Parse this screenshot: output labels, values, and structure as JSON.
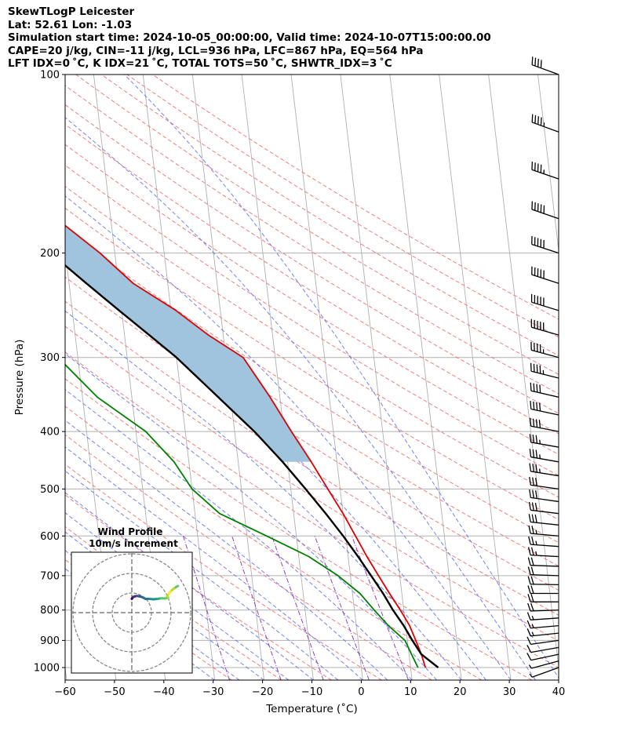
{
  "header": {
    "line1": "SkewTLogP Leicester",
    "line2": "Lat: 52.61   Lon: -1.03",
    "line3": "Simulation start time: 2024-10-05_00:00:00, Valid time: 2024-10-07T15:00:00.00",
    "line4": "CAPE=20 j/kg, CIN=-11 j/kg, LCL=936 hPa, LFC=867 hPa, EQ=564 hPa",
    "line5": "LFT IDX=0 ˚C, K IDX=21 ˚C, TOTAL TOTS=50 ˚C, SHWTR_IDX=3 ˚C"
  },
  "chart_data": {
    "type": "line",
    "subtype": "skew-T log-P diagram",
    "xlabel": "Temperature (˚C)",
    "ylabel": "Pressure (hPa)",
    "xlim": [
      -60,
      40
    ],
    "ylim": [
      1050,
      100
    ],
    "yscale": "log",
    "x_ticks": [
      "−60",
      "−50",
      "−40",
      "−30",
      "−20",
      "−10",
      "0",
      "10",
      "20",
      "30",
      "40"
    ],
    "y_ticks": [
      "100",
      "200",
      "300",
      "400",
      "500",
      "600",
      "700",
      "800",
      "900",
      "1000"
    ],
    "grid": true,
    "series": [
      {
        "role": "temperature",
        "color": "#e00000",
        "points": [
          [
            13,
            1000
          ],
          [
            12.5,
            950
          ],
          [
            11.7,
            900
          ],
          [
            10.8,
            850
          ],
          [
            9.3,
            800
          ],
          [
            7.5,
            750
          ],
          [
            5.7,
            700
          ],
          [
            3.8,
            650
          ],
          [
            2,
            600
          ],
          [
            0,
            550
          ],
          [
            -2.5,
            500
          ],
          [
            -5.2,
            450
          ],
          [
            -8.5,
            400
          ],
          [
            -12,
            350
          ],
          [
            -16.5,
            300
          ],
          [
            -23,
            275
          ],
          [
            -29,
            250
          ],
          [
            -37,
            225
          ],
          [
            -43,
            200
          ],
          [
            -51,
            175
          ],
          [
            -55,
            160
          ],
          [
            -60,
            145
          ],
          [
            -63,
            130
          ],
          [
            -64,
            120
          ],
          [
            -67,
            110
          ],
          [
            -69,
            100
          ]
        ]
      },
      {
        "role": "dewpoint",
        "color": "#008000",
        "points": [
          [
            11.5,
            1000
          ],
          [
            10.5,
            950
          ],
          [
            9.5,
            900
          ],
          [
            6.5,
            850
          ],
          [
            4,
            800
          ],
          [
            1.5,
            750
          ],
          [
            -2.5,
            700
          ],
          [
            -8,
            650
          ],
          [
            -16,
            600
          ],
          [
            -25,
            550
          ],
          [
            -30,
            500
          ],
          [
            -33,
            450
          ],
          [
            -38,
            400
          ],
          [
            -47,
            350
          ],
          [
            -54,
            300
          ],
          [
            -59.5,
            275
          ],
          [
            -62,
            250
          ],
          [
            -65,
            225
          ],
          [
            -70,
            200
          ],
          [
            -76.5,
            175
          ],
          [
            -81,
            160
          ],
          [
            -81,
            150
          ],
          [
            -80,
            140
          ],
          [
            -80,
            130
          ],
          [
            -80.5,
            120
          ],
          [
            -81,
            110
          ],
          [
            -81.5,
            100
          ]
        ]
      },
      {
        "role": "parcel",
        "color": "#000000",
        "points": [
          [
            15.6,
            1000
          ],
          [
            12.5,
            950
          ],
          [
            11,
            900
          ],
          [
            9.6,
            850
          ],
          [
            7.8,
            800
          ],
          [
            6.2,
            750
          ],
          [
            4.2,
            700
          ],
          [
            2,
            650
          ],
          [
            -0.5,
            600
          ],
          [
            -3.5,
            550
          ],
          [
            -7,
            500
          ],
          [
            -11,
            450
          ],
          [
            -16,
            400
          ],
          [
            -22.5,
            350
          ],
          [
            -30,
            300
          ],
          [
            -35,
            275
          ],
          [
            -40.5,
            250
          ],
          [
            -46.5,
            225
          ],
          [
            -53,
            200
          ],
          [
            -62,
            175
          ],
          [
            -68,
            160
          ],
          [
            -73,
            150
          ],
          [
            -77.5,
            140
          ],
          [
            -82.5,
            130
          ],
          [
            -88,
            120
          ],
          [
            -94,
            110
          ],
          [
            -100,
            100
          ]
        ]
      }
    ],
    "cape_shading_color": "#a0c4de",
    "background_lines": {
      "isotherms_color": "#b0b0b0",
      "dry_adiabats_color": "#f07070",
      "moist_adiabats_color": "#5a6cf0",
      "mixing_ratio_color": "#9040c0"
    },
    "wind_barbs": {
      "color": "#000000",
      "levels_hPa": [
        1000,
        975,
        950,
        925,
        900,
        875,
        850,
        825,
        800,
        775,
        750,
        725,
        700,
        675,
        650,
        625,
        600,
        575,
        550,
        525,
        500,
        475,
        450,
        425,
        400,
        375,
        350,
        325,
        300,
        275,
        250,
        225,
        200,
        175,
        150,
        125,
        100
      ],
      "speed_kt": [
        5,
        6,
        8,
        10,
        12,
        14,
        15,
        16,
        18,
        20,
        20,
        22,
        22,
        22,
        24,
        25,
        26,
        28,
        30,
        30,
        32,
        34,
        35,
        36,
        38,
        40,
        42,
        45,
        45,
        48,
        50,
        52,
        50,
        48,
        46,
        44,
        42
      ],
      "direction_deg": [
        250,
        255,
        258,
        260,
        262,
        264,
        265,
        266,
        268,
        270,
        270,
        271,
        272,
        272,
        273,
        274,
        275,
        276,
        277,
        278,
        278,
        279,
        280,
        280,
        281,
        282,
        283,
        284,
        285,
        286,
        287,
        288,
        288,
        289,
        289,
        290,
        290
      ]
    },
    "hodograph": {
      "title": "Wind Profile",
      "subtitle": "10m/s increment",
      "rings_ms": [
        10,
        20,
        30
      ],
      "trace_colormap": "viridis",
      "points_uv": [
        [
          0,
          7
        ],
        [
          0.3,
          7.5
        ],
        [
          0.8,
          8
        ],
        [
          1.5,
          8.3
        ],
        [
          2.5,
          8.5
        ],
        [
          4,
          8.3
        ],
        [
          5.5,
          7.8
        ],
        [
          7,
          7
        ],
        [
          9,
          7
        ],
        [
          11,
          6.8
        ],
        [
          13,
          7
        ],
        [
          15,
          7.3
        ],
        [
          17,
          7.2
        ],
        [
          18.5,
          7.7
        ],
        [
          18,
          8.6
        ],
        [
          18.8,
          9.5
        ],
        [
          19.5,
          10.5
        ],
        [
          20.5,
          11.5
        ],
        [
          21.5,
          12.3
        ],
        [
          22.5,
          13
        ],
        [
          23.5,
          13.6
        ]
      ]
    }
  }
}
